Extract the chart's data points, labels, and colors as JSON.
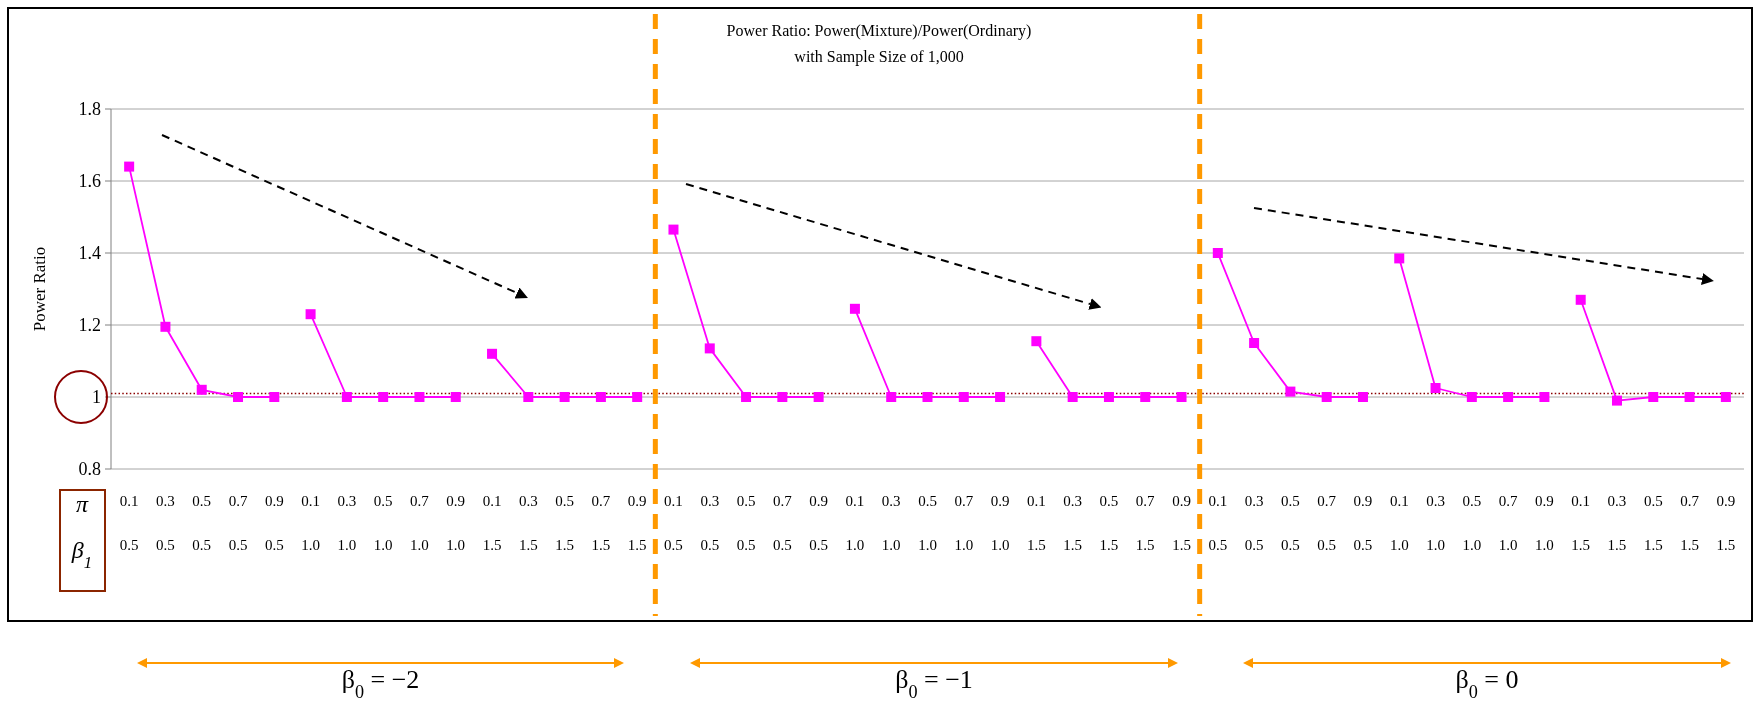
{
  "chart_data": {
    "type": "line",
    "title": "Power Ratio: Power(Mixture)/Power(Ordinary)",
    "subtitle": "with Sample Size of 1,000",
    "ylabel": "Power Ratio",
    "categories": [
      "0.1\n0.5",
      "0.3\n0.5",
      "0.5\n0.5",
      "0.7\n0.5",
      "0.9\n0.5",
      "0.1\n1.0",
      "0.3\n1.0",
      "0.5\n1.0",
      "0.7\n1.0",
      "0.9\n1.0",
      "0.1\n1.5",
      "0.3\n1.5",
      "0.5\n1.5",
      "0.7\n1.5",
      "0.9\n1.5",
      "0.1\n0.5",
      "0.3\n0.5",
      "0.5\n0.5",
      "0.7\n0.5",
      "0.9\n0.5",
      "0.1\n1.0",
      "0.3\n1.0",
      "0.5\n1.0",
      "0.7\n1.0",
      "0.9\n1.0",
      "0.1\n1.5",
      "0.3\n1.5",
      "0.5\n1.5",
      "0.7\n1.5",
      "0.9\n1.5",
      "0.1\n0.5",
      "0.3\n0.5",
      "0.5\n0.5",
      "0.7\n0.5",
      "0.9\n0.5",
      "0.1\n1.0",
      "0.3\n1.0",
      "0.5\n1.0",
      "0.7\n1.0",
      "0.9\n1.0",
      "0.1\n1.5",
      "0.3\n1.5",
      "0.5\n1.5",
      "0.7\n1.5",
      "0.9\n1.5"
    ],
    "series": [
      {
        "color": "#ff00ff",
        "values": [
          1.64,
          1.195,
          1.02,
          1.0,
          1.0,
          null,
          null,
          null,
          null,
          null,
          null,
          null,
          null,
          null,
          null,
          null,
          null,
          null,
          null,
          null,
          null,
          null,
          null,
          null,
          null,
          null,
          null,
          null,
          null,
          null,
          null,
          null,
          null,
          null,
          null,
          null,
          null,
          null,
          null,
          null,
          null,
          null,
          null,
          null,
          null
        ]
      },
      {
        "color": "#ff00ff",
        "values": [
          null,
          null,
          null,
          null,
          null,
          1.23,
          1.0,
          1.0,
          1.0,
          1.0,
          null,
          null,
          null,
          null,
          null,
          null,
          null,
          null,
          null,
          null,
          null,
          null,
          null,
          null,
          null,
          null,
          null,
          null,
          null,
          null,
          null,
          null,
          null,
          null,
          null,
          null,
          null,
          null,
          null,
          null,
          null,
          null,
          null,
          null,
          null
        ]
      },
      {
        "color": "#ff00ff",
        "values": [
          null,
          null,
          null,
          null,
          null,
          null,
          null,
          null,
          null,
          null,
          1.12,
          1.0,
          1.0,
          1.0,
          1.0,
          null,
          null,
          null,
          null,
          null,
          null,
          null,
          null,
          null,
          null,
          null,
          null,
          null,
          null,
          null,
          null,
          null,
          null,
          null,
          null,
          null,
          null,
          null,
          null,
          null,
          null,
          null,
          null,
          null,
          null
        ]
      },
      {
        "color": "#ff00ff",
        "values": [
          null,
          null,
          null,
          null,
          null,
          null,
          null,
          null,
          null,
          null,
          null,
          null,
          null,
          null,
          null,
          1.465,
          1.135,
          1.0,
          1.0,
          1.0,
          null,
          null,
          null,
          null,
          null,
          null,
          null,
          null,
          null,
          null,
          null,
          null,
          null,
          null,
          null,
          null,
          null,
          null,
          null,
          null,
          null,
          null,
          null,
          null,
          null
        ]
      },
      {
        "color": "#ff00ff",
        "values": [
          null,
          null,
          null,
          null,
          null,
          null,
          null,
          null,
          null,
          null,
          null,
          null,
          null,
          null,
          null,
          null,
          null,
          null,
          null,
          null,
          1.245,
          1.0,
          1.0,
          1.0,
          1.0,
          null,
          null,
          null,
          null,
          null,
          null,
          null,
          null,
          null,
          null,
          null,
          null,
          null,
          null,
          null,
          null,
          null,
          null,
          null,
          null
        ]
      },
      {
        "color": "#ff00ff",
        "values": [
          null,
          null,
          null,
          null,
          null,
          null,
          null,
          null,
          null,
          null,
          null,
          null,
          null,
          null,
          null,
          null,
          null,
          null,
          null,
          null,
          null,
          null,
          null,
          null,
          null,
          1.155,
          1.0,
          1.0,
          1.0,
          1.0,
          null,
          null,
          null,
          null,
          null,
          null,
          null,
          null,
          null,
          null,
          null,
          null,
          null,
          null,
          null
        ]
      },
      {
        "color": "#ff00ff",
        "values": [
          null,
          null,
          null,
          null,
          null,
          null,
          null,
          null,
          null,
          null,
          null,
          null,
          null,
          null,
          null,
          null,
          null,
          null,
          null,
          null,
          null,
          null,
          null,
          null,
          null,
          null,
          null,
          null,
          null,
          null,
          1.4,
          1.15,
          1.015,
          1.0,
          1.0,
          null,
          null,
          null,
          null,
          null,
          null,
          null,
          null,
          null,
          null
        ]
      },
      {
        "color": "#ff00ff",
        "values": [
          null,
          null,
          null,
          null,
          null,
          null,
          null,
          null,
          null,
          null,
          null,
          null,
          null,
          null,
          null,
          null,
          null,
          null,
          null,
          null,
          null,
          null,
          null,
          null,
          null,
          null,
          null,
          null,
          null,
          null,
          null,
          null,
          null,
          null,
          null,
          1.385,
          1.025,
          1.0,
          1.0,
          1.0,
          null,
          null,
          null,
          null,
          null
        ]
      },
      {
        "color": "#ff00ff",
        "values": [
          null,
          null,
          null,
          null,
          null,
          null,
          null,
          null,
          null,
          null,
          null,
          null,
          null,
          null,
          null,
          null,
          null,
          null,
          null,
          null,
          null,
          null,
          null,
          null,
          null,
          null,
          null,
          null,
          null,
          null,
          null,
          null,
          null,
          null,
          null,
          null,
          null,
          null,
          null,
          null,
          1.27,
          0.99,
          1.0,
          1.0,
          1.0
        ]
      }
    ],
    "ylim": [
      0.8,
      1.8
    ],
    "yticks": [
      0.8,
      1,
      1.2,
      1.4,
      1.6,
      1.8
    ],
    "grid": "y",
    "marker": "square",
    "line_style": "solid",
    "ref_lines": [
      {
        "axis": "y",
        "value": 1.01,
        "color": "#8b0000",
        "line_style": "dotted"
      }
    ],
    "annotations": [
      "π",
      "β$_{1}$",
      "β$_{0}$  =  −2",
      "β$_{0}$  =  −1",
      "β$_{0}$  =  0"
    ]
  }
}
